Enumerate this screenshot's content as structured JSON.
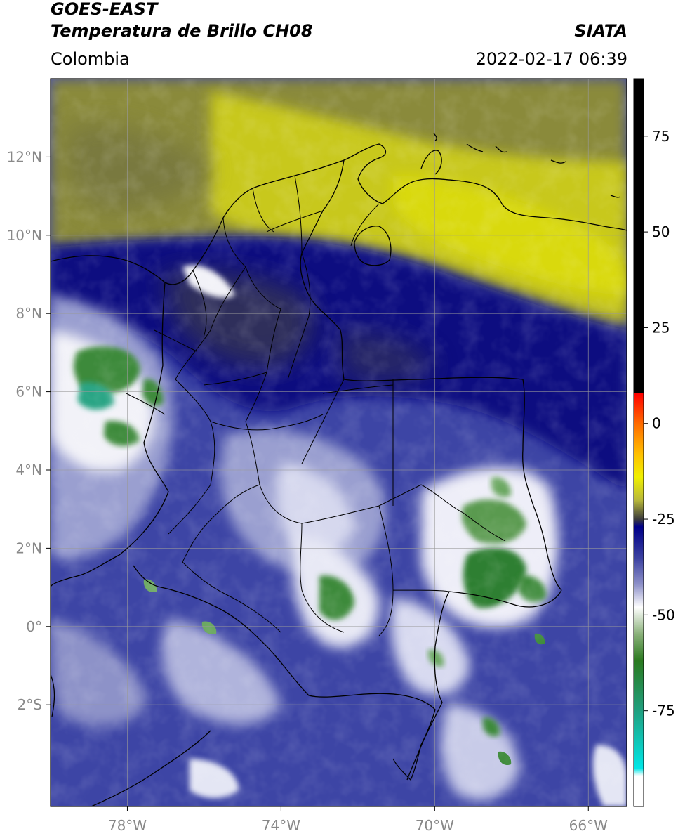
{
  "header": {
    "satellite": "GOES-EAST",
    "product": "Temperatura de Brillo CH08",
    "agency": "SIATA",
    "region": "Colombia",
    "datetime": "2022-02-17 06:39"
  },
  "map": {
    "lon_range": [
      -80.0,
      -65.0
    ],
    "lat_range": [
      -4.6,
      14.0
    ],
    "lon_ticks": [
      {
        "value": -78,
        "label": "78°W"
      },
      {
        "value": -74,
        "label": "74°W"
      },
      {
        "value": -70,
        "label": "70°W"
      },
      {
        "value": -66,
        "label": "66°W"
      }
    ],
    "lat_ticks": [
      {
        "value": 12,
        "label": "12°N"
      },
      {
        "value": 10,
        "label": "10°N"
      },
      {
        "value": 8,
        "label": "8°N"
      },
      {
        "value": 6,
        "label": "6°N"
      },
      {
        "value": 4,
        "label": "4°N"
      },
      {
        "value": 2,
        "label": "2°N"
      },
      {
        "value": 0,
        "label": "0°"
      },
      {
        "value": -2,
        "label": "2°S"
      }
    ],
    "grid": true,
    "grid_color": "#9a9a9a",
    "boundary_color": "#000000"
  },
  "colorbar": {
    "range": [
      -100,
      90
    ],
    "ticks": [
      {
        "value": 75,
        "label": "75"
      },
      {
        "value": 50,
        "label": "50"
      },
      {
        "value": 25,
        "label": "25"
      },
      {
        "value": 0,
        "label": "0"
      },
      {
        "value": -25,
        "label": "-25"
      },
      {
        "value": -50,
        "label": "-50"
      },
      {
        "value": -75,
        "label": "-75"
      }
    ],
    "stops": [
      {
        "value": 90,
        "color": "#000000"
      },
      {
        "value": 8,
        "color": "#000000"
      },
      {
        "value": 7.9,
        "color": "#ff0000"
      },
      {
        "value": 0,
        "color": "#ff6a00"
      },
      {
        "value": -8,
        "color": "#ffc000"
      },
      {
        "value": -14,
        "color": "#f0f000"
      },
      {
        "value": -20,
        "color": "#b8b83a"
      },
      {
        "value": -25,
        "color": "#3b3b3b"
      },
      {
        "value": -27,
        "color": "#000088"
      },
      {
        "value": -35,
        "color": "#3a40a0"
      },
      {
        "value": -42,
        "color": "#8d90c8"
      },
      {
        "value": -48,
        "color": "#ffffff"
      },
      {
        "value": -55,
        "color": "#8ab17a"
      },
      {
        "value": -62,
        "color": "#2b7a20"
      },
      {
        "value": -75,
        "color": "#20a080"
      },
      {
        "value": -90,
        "color": "#00e6e6"
      },
      {
        "value": -92,
        "color": "#ffffff"
      },
      {
        "value": -100,
        "color": "#ffffff"
      }
    ]
  },
  "imagery_colors": {
    "dry_olive": "#8a8a3a",
    "dry_yellow": "#c8c81e",
    "bright_yellow": "#d9d910",
    "dark_navy": "#0a0a80",
    "mid_blue": "#3d45a5",
    "light_blue": "#9a9fd0",
    "cloud_white": "#f2f2f8",
    "cold_green": "#3d8a3a",
    "very_cold_teal": "#2aa585"
  }
}
